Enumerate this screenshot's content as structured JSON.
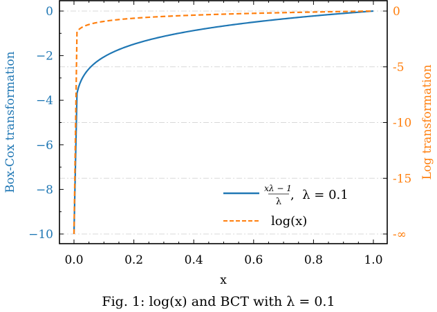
{
  "colors": {
    "boxcox": "#1f77b4",
    "log": "#ff7f0e",
    "grid": "#d8d8d8",
    "axis": "#000000"
  },
  "chart_data": {
    "type": "line",
    "title": "",
    "xlabel": "x",
    "ylabel": "Box-Cox transformation",
    "ylabel_right": "Log transformation",
    "xlim": [
      0.0,
      1.0
    ],
    "ylim": [
      -10,
      0
    ],
    "xticks": [
      "0.0",
      "0.2",
      "0.4",
      "0.6",
      "0.8",
      "1.0"
    ],
    "yticks_left": [
      "0",
      "−2",
      "−4",
      "−6",
      "−8",
      "−10"
    ],
    "yticks_right": [
      "0",
      "-5",
      "-10",
      "-15",
      "-∞"
    ],
    "legend_position": "lower right",
    "grid": true,
    "series": [
      {
        "name": "(x^λ − 1)/λ, λ = 0.1",
        "axis": "left",
        "style": "solid",
        "x": [
          0.0,
          0.01,
          0.02,
          0.05,
          0.1,
          0.2,
          0.3,
          0.4,
          0.5,
          0.6,
          0.7,
          0.8,
          0.9,
          1.0
        ],
        "y": [
          -10.0,
          -3.69,
          -3.24,
          -2.59,
          -2.06,
          -1.49,
          -1.14,
          -0.88,
          -0.67,
          -0.5,
          -0.35,
          -0.22,
          -0.1,
          0.0
        ]
      },
      {
        "name": "log(x)",
        "axis": "right",
        "style": "dashed",
        "x": [
          0.0,
          0.01,
          0.02,
          0.05,
          0.1,
          0.2,
          0.3,
          0.4,
          0.5,
          0.6,
          0.7,
          0.8,
          0.9,
          1.0
        ],
        "y": [
          "-∞",
          -4.61,
          -3.91,
          -3.0,
          -2.3,
          -1.61,
          -1.2,
          -0.92,
          -0.69,
          -0.51,
          -0.36,
          -0.22,
          -0.11,
          0.0
        ]
      }
    ]
  },
  "legend": {
    "item1_fraction_num": "xλ − 1",
    "item1_fraction_den": "λ",
    "item1_suffix": ",  λ = 0.1",
    "item2": "log(x)"
  },
  "caption": "Fig. 1: log(x) and BCT with λ = 0.1"
}
